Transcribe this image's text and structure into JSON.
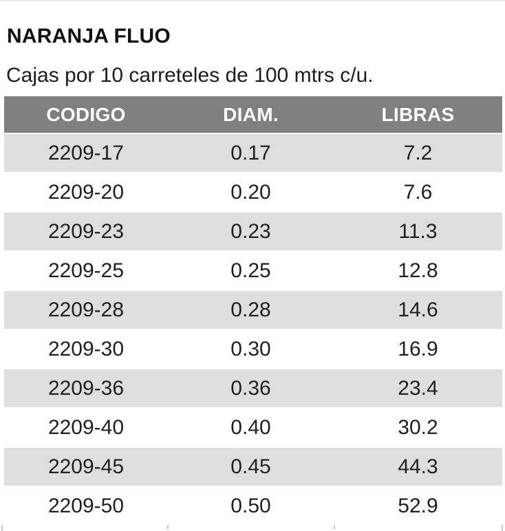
{
  "title": "NARANJA FLUO",
  "subtitle": "Cajas por 10 carreteles de 100 mtrs c/u.",
  "table": {
    "columns": [
      "CODIGO",
      "DIAM.",
      "LIBRAS"
    ],
    "rows": [
      {
        "codigo": "2209-17",
        "diam": "0.17",
        "libras": "7.2"
      },
      {
        "codigo": "2209-20",
        "diam": "0.20",
        "libras": "7.6"
      },
      {
        "codigo": "2209-23",
        "diam": "0.23",
        "libras": "11.3"
      },
      {
        "codigo": "2209-25",
        "diam": "0.25",
        "libras": "12.8"
      },
      {
        "codigo": "2209-28",
        "diam": "0.28",
        "libras": "14.6"
      },
      {
        "codigo": "2209-30",
        "diam": "0.30",
        "libras": "16.9"
      },
      {
        "codigo": "2209-36",
        "diam": "0.36",
        "libras": "23.4"
      },
      {
        "codigo": "2209-40",
        "diam": "0.40",
        "libras": "30.2"
      },
      {
        "codigo": "2209-45",
        "diam": "0.45",
        "libras": "44.3"
      },
      {
        "codigo": "2209-50",
        "diam": "0.50",
        "libras": "52.9"
      }
    ]
  },
  "colors": {
    "header_bg": "#808080",
    "header_text": "#ffffff",
    "row_alt_bg": "#dedede",
    "row_bg": "#ffffff",
    "body_text": "#1f1f1f",
    "edge_tick": "#c8c8c8"
  }
}
